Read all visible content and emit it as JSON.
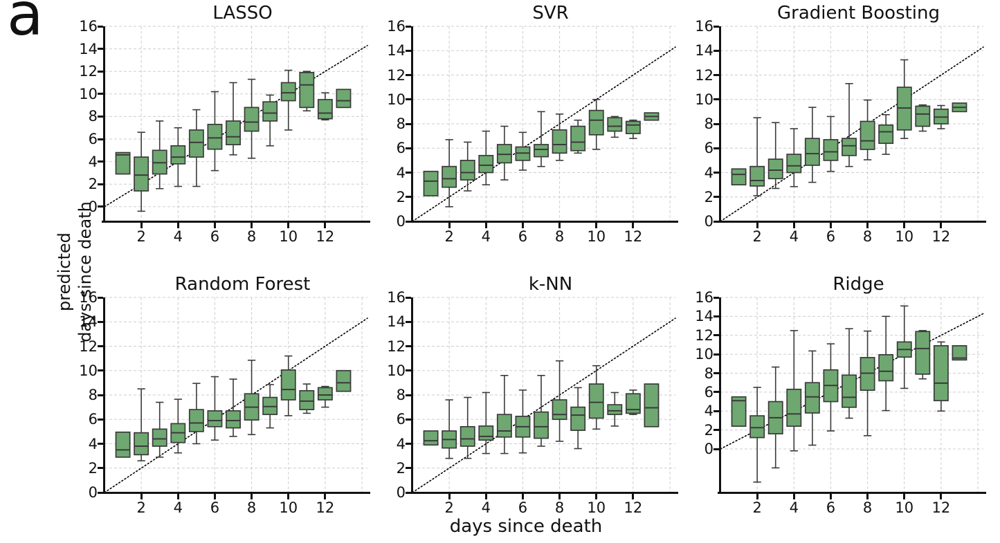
{
  "figure_label": "a",
  "axis_labels": {
    "ylabel_line1": "predicted",
    "ylabel_line2": "days since death",
    "xlabel": "days since death"
  },
  "style": {
    "box_fill": "#6ea870",
    "box_edge": "#3a3a3a",
    "grid_color": "#cdcdcd",
    "identity_color": "#000000"
  },
  "chart_data": [
    {
      "type": "box",
      "title": "LASSO",
      "xlabel": "days since death",
      "ylabel": "predicted days since death",
      "x": [
        1,
        2,
        3,
        4,
        5,
        6,
        7,
        8,
        9,
        10,
        11,
        12,
        13
      ],
      "boxes_lo_q1_med_q3_hi": [
        [
          2.9,
          2.9,
          4.6,
          4.8,
          4.8
        ],
        [
          -0.4,
          1.4,
          2.8,
          4.4,
          6.6
        ],
        [
          1.6,
          2.9,
          3.9,
          5.0,
          7.6
        ],
        [
          1.8,
          3.8,
          4.4,
          5.4,
          7.0
        ],
        [
          1.8,
          4.4,
          5.7,
          6.8,
          8.6
        ],
        [
          3.2,
          5.1,
          6.1,
          7.3,
          10.2
        ],
        [
          4.6,
          5.5,
          6.2,
          7.6,
          11.0
        ],
        [
          4.3,
          6.7,
          7.5,
          8.8,
          11.3
        ],
        [
          5.4,
          7.6,
          8.3,
          9.3,
          9.9
        ],
        [
          6.8,
          9.4,
          10.1,
          11.0,
          12.1
        ],
        [
          8.5,
          8.8,
          10.8,
          11.9,
          12.0
        ],
        [
          7.7,
          7.8,
          8.3,
          9.5,
          10.1
        ],
        [
          8.8,
          8.8,
          9.4,
          10.4,
          10.4
        ]
      ],
      "identity_line": "y=x dotted",
      "ylim": [
        -1.3,
        16
      ],
      "xlim": [
        0,
        14.3
      ],
      "yticks": [
        0,
        2,
        4,
        6,
        8,
        10,
        12,
        14,
        16
      ],
      "xticks": [
        2,
        4,
        6,
        8,
        10,
        12
      ],
      "xgrid": [
        2,
        4,
        6,
        8,
        10,
        12,
        14
      ]
    },
    {
      "type": "box",
      "title": "SVR",
      "xlabel": "days since death",
      "ylabel": "predicted days since death",
      "x": [
        1,
        2,
        3,
        4,
        5,
        6,
        7,
        8,
        9,
        10,
        11,
        12,
        13
      ],
      "boxes_lo_q1_med_q3_hi": [
        [
          2.1,
          2.1,
          3.3,
          4.1,
          4.1
        ],
        [
          1.2,
          2.8,
          3.5,
          4.5,
          6.7
        ],
        [
          2.5,
          3.4,
          4.0,
          5.0,
          6.5
        ],
        [
          3.0,
          4.0,
          4.6,
          5.4,
          7.4
        ],
        [
          3.4,
          4.8,
          5.5,
          6.3,
          7.8
        ],
        [
          4.2,
          5.0,
          5.6,
          6.1,
          7.3
        ],
        [
          4.5,
          5.3,
          5.9,
          6.3,
          9.0
        ],
        [
          5.0,
          5.6,
          6.3,
          7.5,
          8.8
        ],
        [
          5.6,
          5.8,
          6.5,
          7.8,
          8.3
        ],
        [
          5.9,
          7.1,
          8.3,
          9.1,
          10.0
        ],
        [
          6.9,
          7.4,
          7.8,
          8.5,
          8.6
        ],
        [
          6.8,
          7.2,
          7.9,
          8.2,
          8.3
        ],
        [
          8.3,
          8.3,
          8.6,
          8.9,
          8.9
        ]
      ],
      "identity_line": "y=x dotted",
      "ylim": [
        0,
        16
      ],
      "xlim": [
        0,
        14.3
      ],
      "yticks": [
        0,
        2,
        4,
        6,
        8,
        10,
        12,
        14,
        16
      ],
      "xticks": [
        2,
        4,
        6,
        8,
        10,
        12
      ],
      "xgrid": [
        2,
        4,
        6,
        8,
        10,
        12,
        14
      ]
    },
    {
      "type": "box",
      "title": "Gradient Boosting",
      "xlabel": "days since death",
      "ylabel": "predicted days since death",
      "x": [
        1,
        2,
        3,
        4,
        5,
        6,
        7,
        8,
        9,
        10,
        11,
        12,
        13
      ],
      "boxes_lo_q1_med_q3_hi": [
        [
          3.0,
          3.0,
          3.85,
          4.3,
          4.3
        ],
        [
          2.1,
          2.9,
          3.35,
          4.5,
          8.5
        ],
        [
          2.7,
          3.5,
          4.2,
          5.1,
          8.1
        ],
        [
          2.85,
          4.0,
          4.55,
          5.5,
          7.6
        ],
        [
          3.2,
          4.6,
          5.55,
          6.8,
          9.35
        ],
        [
          4.1,
          5.0,
          5.7,
          6.7,
          8.6
        ],
        [
          4.5,
          5.4,
          6.2,
          6.8,
          11.3
        ],
        [
          5.05,
          5.9,
          6.6,
          8.2,
          9.95
        ],
        [
          5.5,
          6.4,
          7.35,
          7.9,
          8.75
        ],
        [
          6.8,
          7.5,
          9.3,
          11.0,
          13.25
        ],
        [
          7.4,
          7.8,
          8.8,
          9.45,
          9.55
        ],
        [
          7.6,
          8.0,
          8.55,
          9.2,
          9.5
        ],
        [
          9.0,
          9.0,
          9.35,
          9.7,
          9.7
        ]
      ],
      "identity_line": "y=x dotted",
      "ylim": [
        0,
        16
      ],
      "xlim": [
        0,
        14.3
      ],
      "yticks": [
        0,
        2,
        4,
        6,
        8,
        10,
        12,
        14,
        16
      ],
      "xticks": [
        2,
        4,
        6,
        8,
        10,
        12
      ],
      "xgrid": [
        2,
        4,
        6,
        8,
        10,
        12,
        14
      ]
    },
    {
      "type": "box",
      "title": "Random Forest",
      "xlabel": "days since death",
      "ylabel": "predicted days since death",
      "x": [
        1,
        2,
        3,
        4,
        5,
        6,
        7,
        8,
        9,
        10,
        11,
        12,
        13
      ],
      "boxes_lo_q1_med_q3_hi": [
        [
          2.9,
          2.9,
          3.5,
          4.95,
          4.95
        ],
        [
          2.6,
          3.1,
          3.8,
          4.9,
          8.5
        ],
        [
          2.9,
          3.8,
          4.4,
          5.2,
          7.4
        ],
        [
          3.25,
          4.1,
          4.9,
          5.65,
          7.65
        ],
        [
          4.0,
          5.0,
          5.7,
          6.8,
          8.95
        ],
        [
          4.3,
          5.4,
          5.9,
          6.7,
          9.5
        ],
        [
          4.6,
          5.3,
          5.9,
          6.7,
          9.3
        ],
        [
          4.75,
          5.95,
          7.0,
          8.1,
          10.85
        ],
        [
          5.3,
          6.4,
          7.05,
          7.8,
          8.85
        ],
        [
          6.3,
          7.6,
          8.45,
          10.05,
          11.2
        ],
        [
          6.5,
          6.8,
          7.5,
          8.35,
          8.9
        ],
        [
          7.0,
          7.6,
          8.0,
          8.6,
          8.7
        ],
        [
          8.3,
          8.3,
          9.0,
          10.0,
          10.0
        ]
      ],
      "identity_line": "y=x dotted",
      "ylim": [
        0,
        16
      ],
      "xlim": [
        0,
        14.3
      ],
      "yticks": [
        0,
        2,
        4,
        6,
        8,
        10,
        12,
        14,
        16
      ],
      "xticks": [
        2,
        4,
        6,
        8,
        10,
        12
      ],
      "xgrid": [
        2,
        4,
        6,
        8,
        10,
        12,
        14
      ]
    },
    {
      "type": "box",
      "title": "k-NN",
      "xlabel": "days since death",
      "ylabel": "predicted days since death",
      "x": [
        1,
        2,
        3,
        4,
        5,
        6,
        7,
        8,
        9,
        10,
        11,
        12,
        13
      ],
      "boxes_lo_q1_med_q3_hi": [
        [
          3.9,
          3.9,
          4.25,
          5.05,
          5.05
        ],
        [
          2.8,
          3.65,
          4.35,
          5.05,
          7.6
        ],
        [
          2.8,
          3.8,
          4.4,
          5.4,
          7.8
        ],
        [
          3.2,
          4.3,
          4.6,
          5.45,
          8.2
        ],
        [
          3.2,
          4.55,
          5.05,
          6.4,
          9.6
        ],
        [
          3.25,
          4.55,
          5.4,
          6.25,
          8.4
        ],
        [
          3.8,
          4.45,
          5.4,
          6.6,
          9.6
        ],
        [
          4.2,
          6.0,
          6.4,
          7.6,
          10.8
        ],
        [
          3.6,
          5.1,
          6.35,
          7.0,
          8.6
        ],
        [
          5.2,
          6.1,
          7.4,
          8.9,
          10.4
        ],
        [
          5.45,
          6.4,
          6.7,
          7.2,
          8.2
        ],
        [
          6.4,
          6.5,
          6.8,
          8.1,
          8.4
        ],
        [
          5.4,
          5.4,
          6.95,
          8.9,
          8.9
        ]
      ],
      "identity_line": "y=x dotted",
      "ylim": [
        0,
        16
      ],
      "xlim": [
        0,
        14.3
      ],
      "yticks": [
        0,
        2,
        4,
        6,
        8,
        10,
        12,
        14,
        16
      ],
      "xticks": [
        2,
        4,
        6,
        8,
        10,
        12
      ],
      "xgrid": [
        2,
        4,
        6,
        8,
        10,
        12,
        14
      ]
    },
    {
      "type": "box",
      "title": "Ridge",
      "xlabel": "days since death",
      "ylabel": "predicted days since death",
      "x": [
        1,
        2,
        3,
        4,
        5,
        6,
        7,
        8,
        9,
        10,
        11,
        12,
        13
      ],
      "boxes_lo_q1_med_q3_hi": [
        [
          2.4,
          2.4,
          5.1,
          5.5,
          5.5
        ],
        [
          -3.5,
          1.2,
          2.25,
          3.5,
          6.5
        ],
        [
          -2.0,
          1.6,
          3.3,
          5.0,
          8.65
        ],
        [
          -0.2,
          2.4,
          3.7,
          6.3,
          12.5
        ],
        [
          0.4,
          3.8,
          5.5,
          7.0,
          10.35
        ],
        [
          1.9,
          5.0,
          6.7,
          8.35,
          11.1
        ],
        [
          3.25,
          4.4,
          5.45,
          7.8,
          12.7
        ],
        [
          1.4,
          6.2,
          8.0,
          9.65,
          12.45
        ],
        [
          4.05,
          7.2,
          8.2,
          9.95,
          14.0
        ],
        [
          6.4,
          9.7,
          10.5,
          11.3,
          15.1
        ],
        [
          7.4,
          7.9,
          10.6,
          12.4,
          12.5
        ],
        [
          4.0,
          5.1,
          6.95,
          10.9,
          11.3
        ],
        [
          9.4,
          9.4,
          9.6,
          10.9,
          10.9
        ]
      ],
      "identity_line": "y=x dotted",
      "ylim": [
        -4.6,
        16
      ],
      "xlim": [
        0,
        14.3
      ],
      "yticks": [
        0,
        2,
        4,
        6,
        8,
        10,
        12,
        14,
        16
      ],
      "xticks": [
        2,
        4,
        6,
        8,
        10,
        12
      ],
      "xgrid": [
        2,
        4,
        6,
        8,
        10,
        12,
        14
      ]
    }
  ]
}
